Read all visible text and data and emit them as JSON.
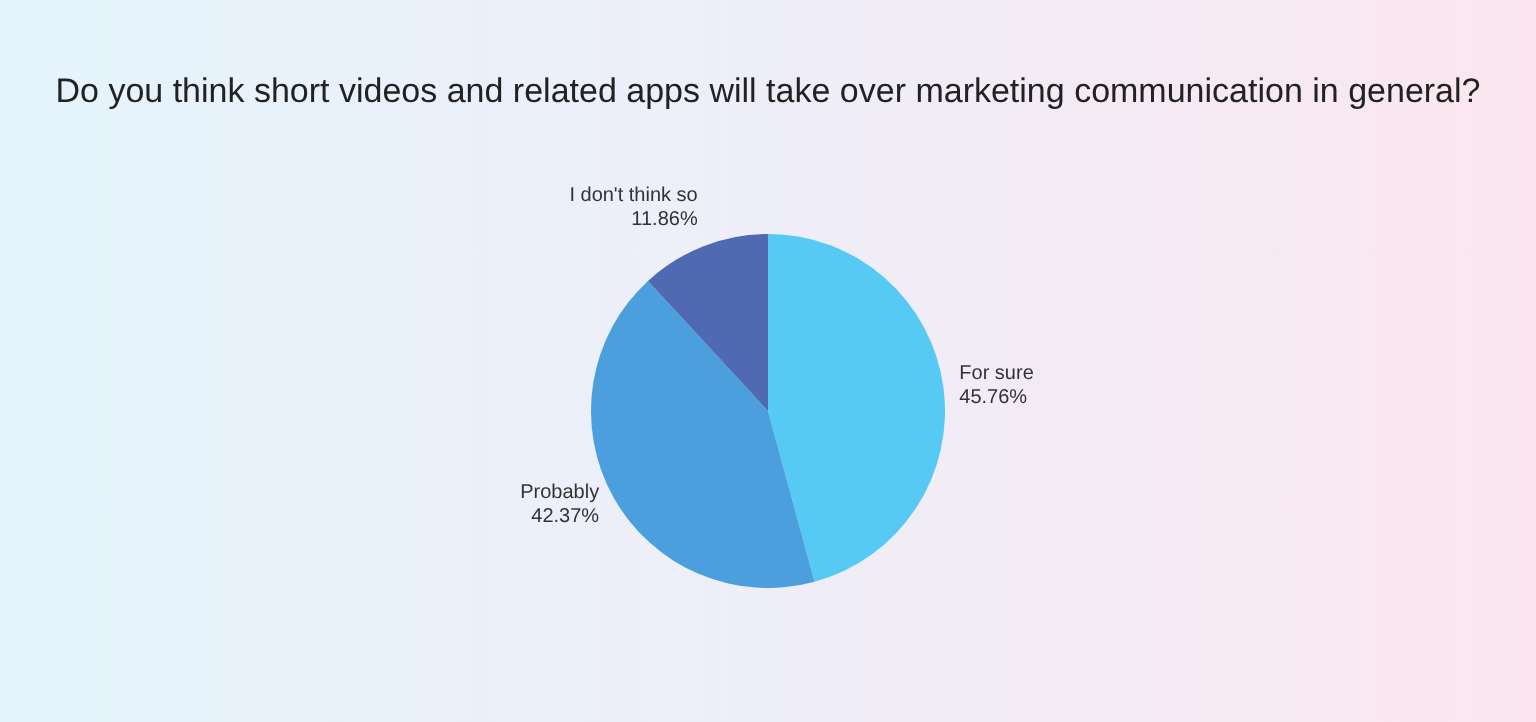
{
  "chart_data": {
    "type": "pie",
    "title": "Do you think short videos and related apps will take over marketing communication in general?",
    "categories": [
      "For sure",
      "Probably",
      "I don't think so"
    ],
    "values": [
      45.76,
      42.37,
      11.86
    ],
    "value_labels": [
      "45.76%",
      "42.37%",
      "11.86%"
    ],
    "colors": [
      "#56c9f5",
      "#4b9fdd",
      "#4f6ab3"
    ],
    "legend": false
  }
}
